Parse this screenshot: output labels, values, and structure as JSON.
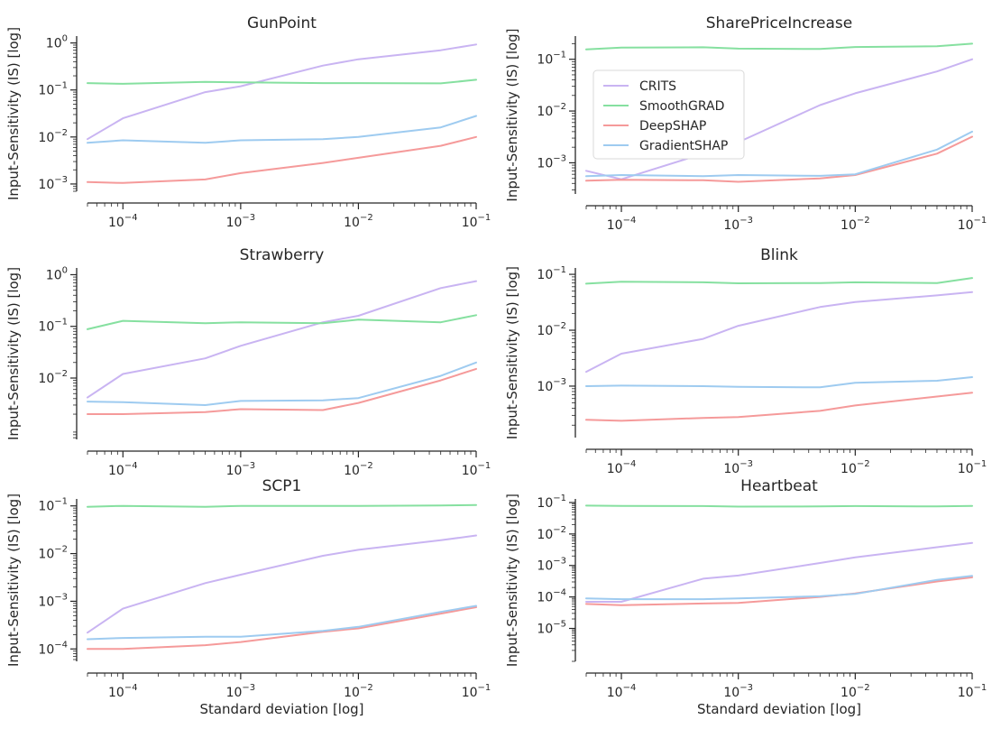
{
  "colors": {
    "CRITS": "#c9b4f2",
    "SmoothGRAD": "#86e0a0",
    "DeepSHAP": "#f59a9a",
    "GradientSHAP": "#9ecbf0"
  },
  "chart_data": [
    {
      "type": "line",
      "title": "GunPoint",
      "xlabel": "",
      "ylabel": "Input-Sensitivity (IS) [log]",
      "xscale": "log",
      "yscale": "log",
      "xlim": [
        5e-05,
        0.1
      ],
      "ylim": [
        0.0007,
        1.4
      ],
      "yticks": [
        {
          "value": 0.001,
          "mant": "10",
          "exp": "−3"
        },
        {
          "value": 0.01,
          "mant": "10",
          "exp": "−2"
        },
        {
          "value": 0.1,
          "mant": "10",
          "exp": "−1"
        },
        {
          "value": 1,
          "mant": "10",
          "exp": "0"
        }
      ],
      "x": [
        5e-05,
        0.0001,
        0.0005,
        0.001,
        0.005,
        0.01,
        0.05,
        0.1
      ],
      "series": [
        {
          "name": "CRITS",
          "values": [
            0.009,
            0.025,
            0.09,
            0.12,
            0.33,
            0.45,
            0.7,
            0.93
          ]
        },
        {
          "name": "SmoothGRAD",
          "values": [
            0.14,
            0.135,
            0.148,
            0.145,
            0.14,
            0.14,
            0.138,
            0.165
          ]
        },
        {
          "name": "DeepSHAP",
          "values": [
            0.0011,
            0.00105,
            0.00125,
            0.0017,
            0.0028,
            0.0036,
            0.0065,
            0.01
          ]
        },
        {
          "name": "GradientSHAP",
          "values": [
            0.0075,
            0.0085,
            0.0075,
            0.0085,
            0.009,
            0.01,
            0.016,
            0.028
          ]
        }
      ],
      "grid": false,
      "legend": "none"
    },
    {
      "type": "line",
      "title": "SharePriceIncrease",
      "xlabel": "",
      "ylabel": "Input-Sensitivity (IS) [log]",
      "xscale": "log",
      "yscale": "log",
      "xlim": [
        5e-05,
        0.1
      ],
      "ylim": [
        0.00025,
        0.28
      ],
      "yticks": [
        {
          "value": 0.001,
          "mant": "10",
          "exp": "−3"
        },
        {
          "value": 0.01,
          "mant": "10",
          "exp": "−2"
        },
        {
          "value": 0.1,
          "mant": "10",
          "exp": "−1"
        }
      ],
      "x": [
        5e-05,
        0.0001,
        0.0005,
        0.001,
        0.005,
        0.01,
        0.05,
        0.1
      ],
      "series": [
        {
          "name": "CRITS",
          "values": [
            0.0007,
            0.00048,
            0.0015,
            0.0025,
            0.013,
            0.022,
            0.058,
            0.1
          ]
        },
        {
          "name": "SmoothGRAD",
          "values": [
            0.155,
            0.168,
            0.17,
            0.16,
            0.158,
            0.172,
            0.178,
            0.2
          ]
        },
        {
          "name": "DeepSHAP",
          "values": [
            0.00045,
            0.00047,
            0.00046,
            0.00043,
            0.0005,
            0.00058,
            0.0015,
            0.0032
          ]
        },
        {
          "name": "GradientSHAP",
          "values": [
            0.00055,
            0.00058,
            0.00055,
            0.00058,
            0.00056,
            0.0006,
            0.0018,
            0.004
          ]
        }
      ],
      "grid": false,
      "legend": "top-left",
      "legend_entries": [
        "CRITS",
        "SmoothGRAD",
        "DeepSHAP",
        "GradientSHAP"
      ]
    },
    {
      "type": "line",
      "title": "Strawberry",
      "xlabel": "",
      "ylabel": "Input-Sensitivity (IS) [log]",
      "xscale": "log",
      "yscale": "log",
      "xlim": [
        5e-05,
        0.1
      ],
      "ylim": [
        0.00065,
        1.35
      ],
      "yticks": [
        {
          "value": 0.01,
          "mant": "10",
          "exp": "−2"
        },
        {
          "value": 0.1,
          "mant": "10",
          "exp": "−1"
        },
        {
          "value": 1,
          "mant": "10",
          "exp": "0"
        }
      ],
      "x": [
        5e-05,
        0.0001,
        0.0005,
        0.001,
        0.005,
        0.01,
        0.05,
        0.1
      ],
      "series": [
        {
          "name": "CRITS",
          "values": [
            0.0042,
            0.012,
            0.024,
            0.042,
            0.12,
            0.16,
            0.55,
            0.75
          ]
        },
        {
          "name": "SmoothGRAD",
          "values": [
            0.088,
            0.128,
            0.115,
            0.12,
            0.115,
            0.135,
            0.12,
            0.165
          ]
        },
        {
          "name": "DeepSHAP",
          "values": [
            0.002,
            0.002,
            0.0022,
            0.0025,
            0.0024,
            0.0033,
            0.009,
            0.015
          ]
        },
        {
          "name": "GradientSHAP",
          "values": [
            0.0035,
            0.0034,
            0.003,
            0.0036,
            0.0037,
            0.0041,
            0.011,
            0.02
          ]
        }
      ],
      "grid": false,
      "legend": "none"
    },
    {
      "type": "line",
      "title": "Blink",
      "xlabel": "",
      "ylabel": "Input-Sensitivity (IS) [log]",
      "xscale": "log",
      "yscale": "log",
      "xlim": [
        5e-05,
        0.1
      ],
      "ylim": [
        0.00012,
        0.13
      ],
      "yticks": [
        {
          "value": 0.001,
          "mant": "10",
          "exp": "−3"
        },
        {
          "value": 0.01,
          "mant": "10",
          "exp": "−2"
        },
        {
          "value": 0.1,
          "mant": "10",
          "exp": "−1"
        }
      ],
      "x": [
        5e-05,
        0.0001,
        0.0005,
        0.001,
        0.005,
        0.01,
        0.05,
        0.1
      ],
      "series": [
        {
          "name": "CRITS",
          "values": [
            0.0018,
            0.0038,
            0.007,
            0.012,
            0.026,
            0.032,
            0.042,
            0.048
          ]
        },
        {
          "name": "SmoothGRAD",
          "values": [
            0.068,
            0.074,
            0.072,
            0.069,
            0.07,
            0.072,
            0.07,
            0.086
          ]
        },
        {
          "name": "DeepSHAP",
          "values": [
            0.00025,
            0.00024,
            0.00027,
            0.00028,
            0.00036,
            0.00045,
            0.00065,
            0.00076
          ]
        },
        {
          "name": "GradientSHAP",
          "values": [
            0.001,
            0.00102,
            0.001,
            0.00097,
            0.00095,
            0.00115,
            0.00125,
            0.00145
          ]
        }
      ],
      "grid": false,
      "legend": "none"
    },
    {
      "type": "line",
      "title": "SCP1",
      "xlabel": "Standard deviation [log]",
      "ylabel": "Input-Sensitivity (IS) [log]",
      "xscale": "log",
      "yscale": "log",
      "xlim": [
        5e-05,
        0.1
      ],
      "ylim": [
        5.5e-05,
        0.14
      ],
      "yticks": [
        {
          "value": 0.0001,
          "mant": "10",
          "exp": "−4"
        },
        {
          "value": 0.001,
          "mant": "10",
          "exp": "−3"
        },
        {
          "value": 0.01,
          "mant": "10",
          "exp": "−2"
        },
        {
          "value": 0.1,
          "mant": "10",
          "exp": "−1"
        }
      ],
      "x": [
        5e-05,
        0.0001,
        0.0005,
        0.001,
        0.005,
        0.01,
        0.05,
        0.1
      ],
      "series": [
        {
          "name": "CRITS",
          "values": [
            0.00022,
            0.0007,
            0.0024,
            0.0036,
            0.009,
            0.012,
            0.019,
            0.024
          ]
        },
        {
          "name": "SmoothGRAD",
          "values": [
            0.096,
            0.1,
            0.096,
            0.1,
            0.1,
            0.1,
            0.102,
            0.104
          ]
        },
        {
          "name": "DeepSHAP",
          "values": [
            0.0001,
            0.0001,
            0.00012,
            0.00014,
            0.00023,
            0.00027,
            0.00055,
            0.00075
          ]
        },
        {
          "name": "GradientSHAP",
          "values": [
            0.00016,
            0.00017,
            0.00018,
            0.00018,
            0.00024,
            0.00029,
            0.0006,
            0.0008
          ]
        }
      ],
      "grid": false,
      "legend": "none"
    },
    {
      "type": "line",
      "title": "Heartbeat",
      "xlabel": "Standard deviation [log]",
      "ylabel": "Input-Sensitivity (IS) [log]",
      "xscale": "log",
      "yscale": "log",
      "xlim": [
        5e-05,
        0.1
      ],
      "ylim": [
        9e-07,
        0.13
      ],
      "yticks": [
        {
          "value": 1e-05,
          "mant": "10",
          "exp": "−5"
        },
        {
          "value": 0.0001,
          "mant": "10",
          "exp": "−4"
        },
        {
          "value": 0.001,
          "mant": "10",
          "exp": "−3"
        },
        {
          "value": 0.01,
          "mant": "10",
          "exp": "−2"
        },
        {
          "value": 0.1,
          "mant": "10",
          "exp": "−1"
        }
      ],
      "x": [
        5e-05,
        0.0001,
        0.0005,
        0.001,
        0.005,
        0.01,
        0.05,
        0.1
      ],
      "series": [
        {
          "name": "CRITS",
          "values": [
            7e-05,
            7e-05,
            0.00038,
            0.00048,
            0.0012,
            0.0018,
            0.0038,
            0.0052
          ]
        },
        {
          "name": "SmoothGRAD",
          "values": [
            0.08,
            0.078,
            0.077,
            0.074,
            0.075,
            0.077,
            0.075,
            0.078
          ]
        },
        {
          "name": "DeepSHAP",
          "values": [
            6e-05,
            5.5e-05,
            6.2e-05,
            6.5e-05,
            0.0001,
            0.00013,
            0.00031,
            0.00042
          ]
        },
        {
          "name": "GradientSHAP",
          "values": [
            9e-05,
            8.5e-05,
            8.5e-05,
            9e-05,
            0.000105,
            0.000125,
            0.00035,
            0.00047
          ]
        }
      ],
      "grid": false,
      "legend": "none"
    }
  ],
  "xticks": [
    {
      "value": 0.0001,
      "mant": "10",
      "exp": "−4"
    },
    {
      "value": 0.001,
      "mant": "10",
      "exp": "−3"
    },
    {
      "value": 0.01,
      "mant": "10",
      "exp": "−2"
    },
    {
      "value": 0.1,
      "mant": "10",
      "exp": "−1"
    }
  ]
}
